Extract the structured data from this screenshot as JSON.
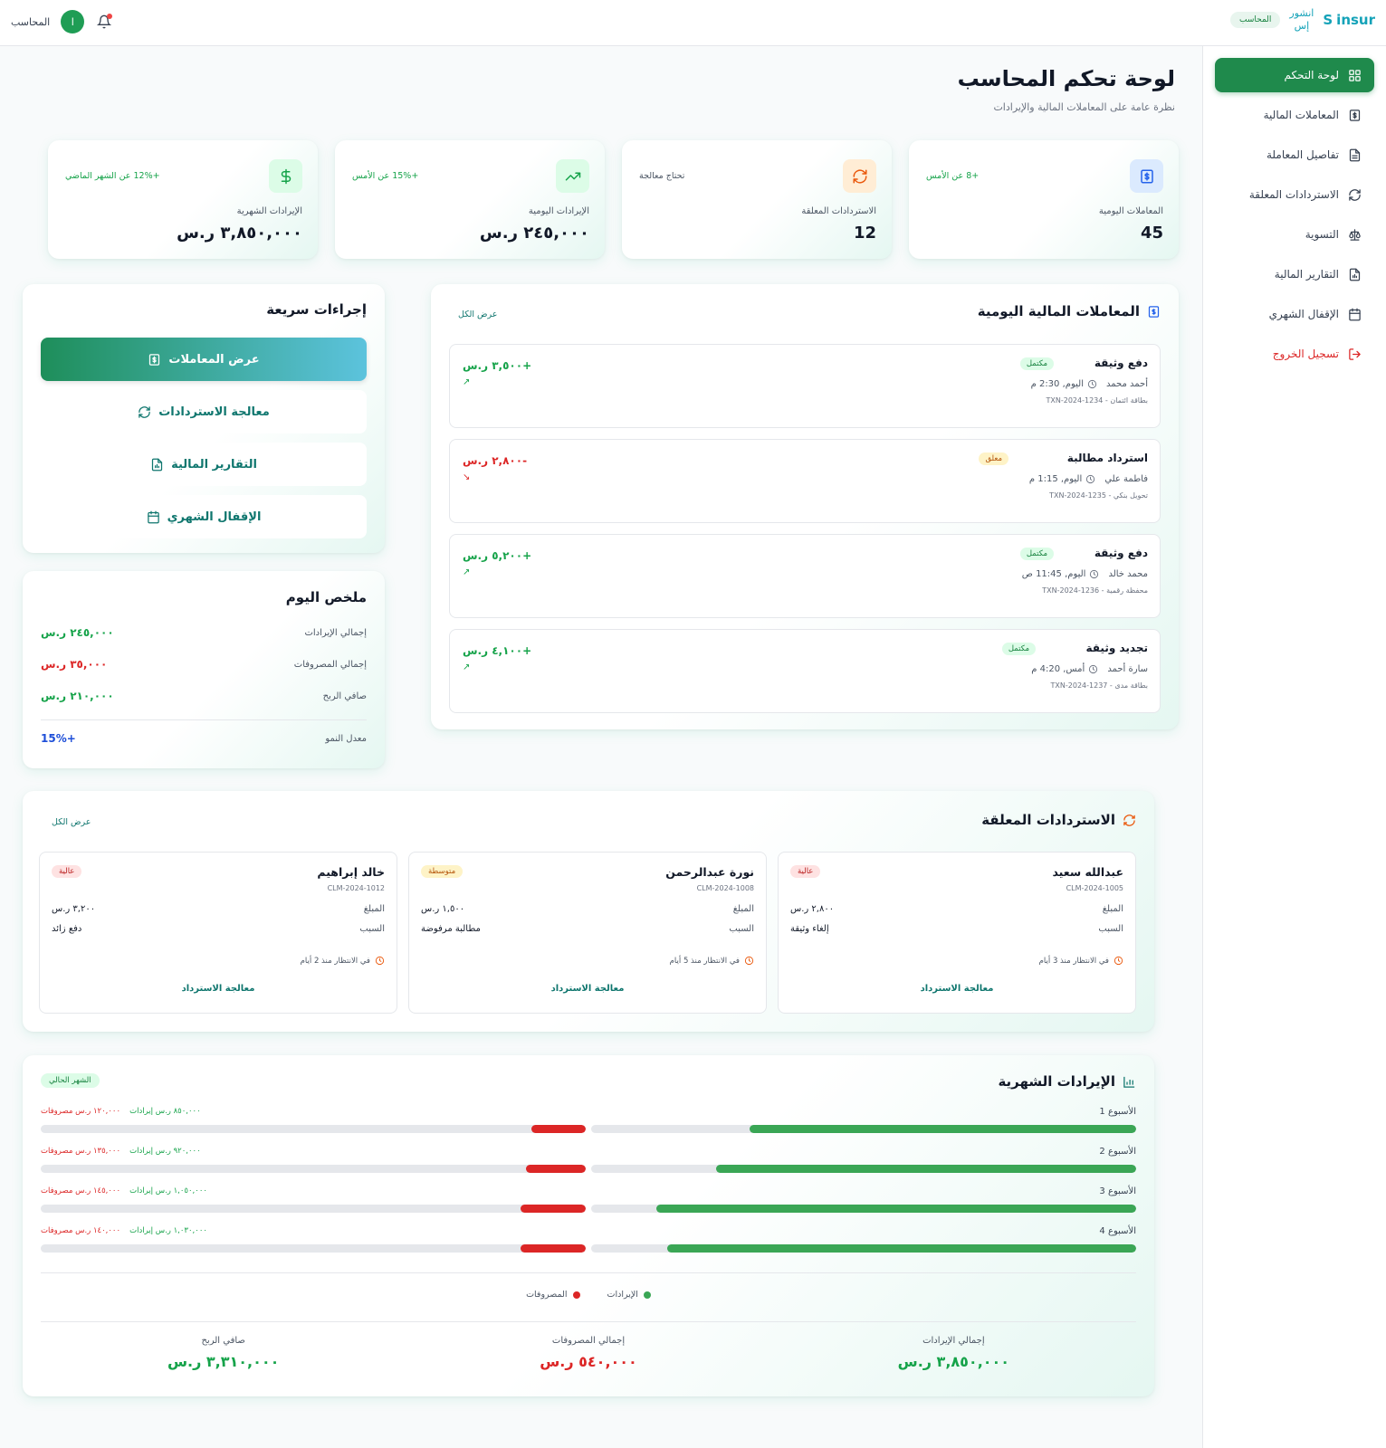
{
  "brand": {
    "logo_text": "insur",
    "logo_letter": "S",
    "arabic_line1": "انشور",
    "arabic_line2": "إس",
    "role_pill": "المحاسب"
  },
  "topbar": {
    "user_name": "المحاسب",
    "avatar_initial": "ا"
  },
  "sidebar": {
    "items": [
      {
        "label": "لوحة التحكم",
        "icon": "grid-icon",
        "active": true
      },
      {
        "label": "المعاملات المالية",
        "icon": "dollar-file-icon"
      },
      {
        "label": "تفاصيل المعاملة",
        "icon": "document-icon"
      },
      {
        "label": "الاستردادات المعلقة",
        "icon": "refresh-icon"
      },
      {
        "label": "التسوية",
        "icon": "scale-icon"
      },
      {
        "label": "التقارير المالية",
        "icon": "report-icon"
      },
      {
        "label": "الإقفال الشهري",
        "icon": "calendar-icon"
      },
      {
        "label": "تسجيل الخروج",
        "icon": "logout-icon",
        "danger": true
      }
    ]
  },
  "header": {
    "title": "لوحة تحكم المحاسب",
    "subtitle": "نظرة عامة على المعاملات المالية والإيرادات"
  },
  "stats": [
    {
      "label": "المعاملات اليومية",
      "value": "45",
      "delta": "+8 عن الأمس",
      "icon": "dollar-file-icon",
      "color": "#2563eb",
      "bg": "#dbeafe"
    },
    {
      "label": "الاستردادات المعلقة",
      "value": "12",
      "delta": "تحتاج معالجة",
      "icon": "refresh-icon",
      "color": "#ea580c",
      "bg": "#ffedd5"
    },
    {
      "label": "الإيرادات اليومية",
      "value": "٢٤٥,٠٠٠ ر.س",
      "delta": "+15% عن الأمس",
      "icon": "trend-up-icon",
      "color": "#16a34a",
      "bg": "#dcfce7"
    },
    {
      "label": "الإيرادات الشهرية",
      "value": "٣,٨٥٠,٠٠٠ ر.س",
      "delta": "+12% عن الشهر الماضي",
      "icon": "dollar-icon",
      "color": "#16a34a",
      "bg": "#dcfce7"
    }
  ],
  "daily_txn": {
    "title": "المعاملات المالية اليومية",
    "view_all": "عرض الكل",
    "items": [
      {
        "title": "دفع وثيقة",
        "status": "مكتمل",
        "status_type": "done",
        "person": "أحمد محمد",
        "time": "اليوم, 2:30 م",
        "ref": "بطاقة ائتمان - TXN-2024-1234",
        "amount": "+٣,٥٠٠ ر.س",
        "dir": "up"
      },
      {
        "title": "استرداد مطالبة",
        "status": "معلق",
        "status_type": "pending",
        "person": "فاطمة علي",
        "time": "اليوم, 1:15 م",
        "ref": "تحويل بنكي - TXN-2024-1235",
        "amount": "-٢,٨٠٠ ر.س",
        "dir": "down"
      },
      {
        "title": "دفع وثيقة",
        "status": "مكتمل",
        "status_type": "done",
        "person": "محمد خالد",
        "time": "اليوم, 11:45 ص",
        "ref": "محفظة رقمية - TXN-2024-1236",
        "amount": "+٥,٢٠٠ ر.س",
        "dir": "up"
      },
      {
        "title": "تجديد وثيقة",
        "status": "مكتمل",
        "status_type": "done",
        "person": "سارة أحمد",
        "time": "أمس, 4:20 م",
        "ref": "بطاقة مدى - TXN-2024-1237",
        "amount": "+٤,١٠٠ ر.س",
        "dir": "up"
      }
    ]
  },
  "quick_actions": {
    "title": "إجراءات سريعة",
    "items": [
      {
        "label": "عرض المعاملات",
        "icon": "dollar-file-icon",
        "primary": true
      },
      {
        "label": "معالجة الاستردادات",
        "icon": "refresh-icon"
      },
      {
        "label": "التقارير المالية",
        "icon": "report-icon"
      },
      {
        "label": "الإقفال الشهري",
        "icon": "calendar-icon"
      }
    ]
  },
  "today_summary": {
    "title": "ملخص اليوم",
    "rows": [
      {
        "label": "إجمالي الإيرادات",
        "value": "٢٤٥,٠٠٠ ر.س",
        "color": "#16a34a"
      },
      {
        "label": "إجمالي المصروفات",
        "value": "٣٥,٠٠٠ ر.س",
        "color": "#dc2626"
      },
      {
        "label": "صافي الربح",
        "value": "٢١٠,٠٠٠ ر.س",
        "color": "#16a34a"
      }
    ],
    "growth_label": "معدل النمو",
    "growth_value": "+15%"
  },
  "pending_refunds": {
    "title": "الاستردادات المعلقة",
    "view_all": "عرض الكل",
    "amount_label": "المبلغ",
    "reason_label": "السبب",
    "process_label": "معالجة الاسترداد",
    "items": [
      {
        "name": "عبدالله سعيد",
        "id": "CLM-2024-1005",
        "priority": "عالية",
        "priority_type": "high",
        "amount": "٢,٨٠٠ ر.س",
        "reason": "إلغاء وثيقة",
        "wait": "في الانتظار منذ 3 أيام"
      },
      {
        "name": "نورة عبدالرحمن",
        "id": "CLM-2024-1008",
        "priority": "متوسطة",
        "priority_type": "mid",
        "amount": "١,٥٠٠ ر.س",
        "reason": "مطالبة مرفوضة",
        "wait": "في الانتظار منذ 5 أيام"
      },
      {
        "name": "خالد إبراهيم",
        "id": "CLM-2024-1012",
        "priority": "عالية",
        "priority_type": "high",
        "amount": "٣,٢٠٠ ر.س",
        "reason": "دفع زائد",
        "wait": "في الانتظار منذ 2 أيام"
      }
    ]
  },
  "monthly_revenue": {
    "title": "الإيرادات الشهرية",
    "badge": "الشهر الحالي",
    "weeks": [
      {
        "label": "الأسبوع 1",
        "revenue_text": "٨٥٠,٠٠٠ ر.س إيرادات",
        "expense_text": "١٢٠,٠٠٠ ر.س مصروفات",
        "revenue_pct": 0.71,
        "expense_pct": 0.1
      },
      {
        "label": "الأسبوع 2",
        "revenue_text": "٩٢٠,٠٠٠ ر.س إيرادات",
        "expense_text": "١٣٥,٠٠٠ ر.س مصروفات",
        "revenue_pct": 0.77,
        "expense_pct": 0.11
      },
      {
        "label": "الأسبوع 3",
        "revenue_text": "١,٠٥٠,٠٠٠ ر.س إيرادات",
        "expense_text": "١٤٥,٠٠٠ ر.س مصروفات",
        "revenue_pct": 0.88,
        "expense_pct": 0.12
      },
      {
        "label": "الأسبوع 4",
        "revenue_text": "١,٠٣٠,٠٠٠ ر.س إيرادات",
        "expense_text": "١٤٠,٠٠٠ ر.س مصروفات",
        "revenue_pct": 0.86,
        "expense_pct": 0.12
      }
    ],
    "legend": {
      "revenue": "الإيرادات",
      "expenses": "المصروفات"
    },
    "totals": [
      {
        "label": "إجمالي الإيرادات",
        "value": "٣,٨٥٠,٠٠٠ ر.س",
        "color": "#16a34a"
      },
      {
        "label": "إجمالي المصروفات",
        "value": "٥٤٠,٠٠٠ ر.س",
        "color": "#dc2626"
      },
      {
        "label": "صافي الربح",
        "value": "٣,٣١٠,٠٠٠ ر.س",
        "color": "#16a34a"
      }
    ],
    "colors": {
      "revenue": "#3aa655",
      "expenses": "#dc2626"
    }
  }
}
